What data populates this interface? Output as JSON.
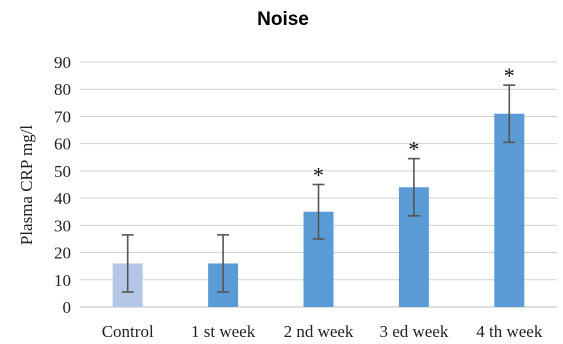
{
  "chart_data": {
    "type": "bar",
    "title": "Noise",
    "xlabel": "",
    "ylabel": "Plasma CRP mg/l",
    "ylim": [
      0,
      90
    ],
    "yticks": [
      0,
      10,
      20,
      30,
      40,
      50,
      60,
      70,
      80,
      90
    ],
    "grid": true,
    "legend": "none",
    "categories": [
      "Control",
      "1 st week",
      "2 nd week",
      "3 ed week",
      "4 th week"
    ],
    "values": [
      16,
      16,
      35,
      44,
      71
    ],
    "errors": [
      10.5,
      10.5,
      10,
      10.5,
      10.5
    ],
    "annotations": [
      "",
      "",
      "*",
      "*",
      "*"
    ],
    "colors": [
      "#b4c7e7",
      "#5b9bd5",
      "#5b9bd5",
      "#5b9bd5",
      "#5b9bd5"
    ]
  }
}
